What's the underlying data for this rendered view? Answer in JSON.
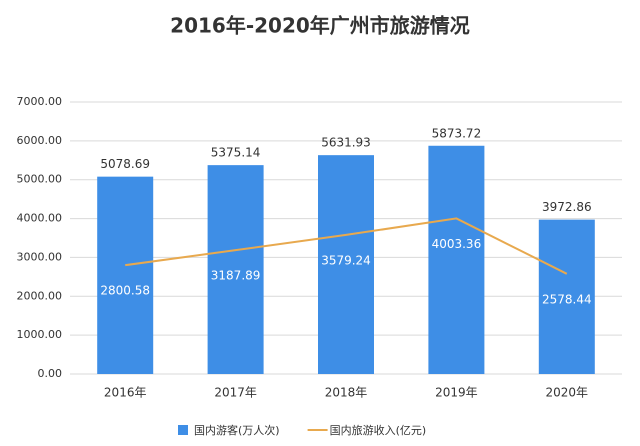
{
  "chart_data": {
    "type": "bar",
    "title": "2016年-2020年广州市旅游情况",
    "categories": [
      "2016年",
      "2017年",
      "2018年",
      "2019年",
      "2020年"
    ],
    "series": [
      {
        "name": "国内游客(万人次)",
        "type": "bar",
        "color": "#3e8ee6",
        "values": [
          5078.69,
          5375.14,
          5631.93,
          5873.72,
          3972.86
        ]
      },
      {
        "name": "国内旅游收入(亿元)",
        "type": "line",
        "color": "#e8a94e",
        "values": [
          2800.58,
          3187.89,
          3579.24,
          4003.36,
          2578.44
        ]
      }
    ],
    "ylim": [
      0,
      7000
    ],
    "yticks": [
      {
        "value": 0,
        "label": "0.00"
      },
      {
        "value": 1000,
        "label": "1000.00"
      },
      {
        "value": 2000,
        "label": "2000.00"
      },
      {
        "value": 3000,
        "label": "3000.00"
      },
      {
        "value": 4000,
        "label": "4000.00"
      },
      {
        "value": 5000,
        "label": "5000.00"
      },
      {
        "value": 6000,
        "label": "6000.00"
      },
      {
        "value": 7000,
        "label": "7000.00"
      }
    ],
    "grid": true
  }
}
